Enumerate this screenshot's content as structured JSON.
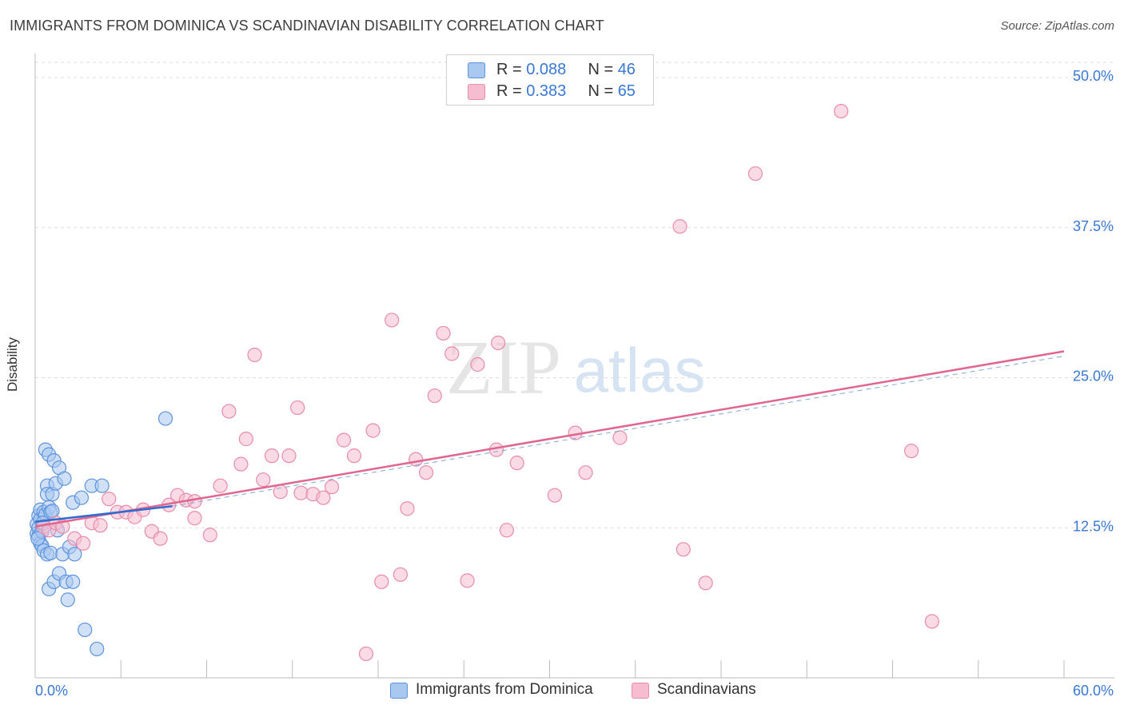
{
  "title": "IMMIGRANTS FROM DOMINICA VS SCANDINAVIAN DISABILITY CORRELATION CHART",
  "source": "Source: ZipAtlas.com",
  "watermark": {
    "zip": "ZIP",
    "atlas": "atlas"
  },
  "legend": {
    "rows": [
      {
        "r_label": "R = ",
        "r_value": "0.088",
        "n_label": "N = ",
        "n_value": "46"
      },
      {
        "r_label": "R = ",
        "r_value": "0.383",
        "n_label": "N = ",
        "n_value": "65"
      }
    ]
  },
  "bottom_legend": [
    "Immigrants from Dominica",
    "Scandinavians"
  ],
  "colors": {
    "blue_fill": "#a9c8f0",
    "blue_stroke": "#5d93dd",
    "blue_line": "#2f6ccf",
    "pink_fill": "#f6bdd0",
    "pink_stroke": "#e98bab",
    "pink_line": "#e0668f",
    "tick_label": "#3a78d6",
    "grid": "#dddddd"
  },
  "chart_data": {
    "type": "scatter",
    "ylabel": "Disability",
    "xlim": [
      0,
      60
    ],
    "ylim": [
      0,
      52
    ],
    "x_tick_labels": [
      "0.0%",
      "60.0%"
    ],
    "y_ticks": [
      12.5,
      25.0,
      37.5,
      50.0
    ],
    "y_tick_labels": [
      "12.5%",
      "25.0%",
      "37.5%",
      "50.0%"
    ],
    "series": [
      {
        "name": "Immigrants from Dominica",
        "color": "blue",
        "points": [
          [
            0.1,
            12.8
          ],
          [
            0.1,
            12.0
          ],
          [
            0.2,
            13.5
          ],
          [
            0.2,
            12.5
          ],
          [
            0.2,
            11.8
          ],
          [
            0.3,
            14.0
          ],
          [
            0.3,
            13.2
          ],
          [
            0.3,
            11.2
          ],
          [
            0.4,
            12.2
          ],
          [
            0.4,
            11.0
          ],
          [
            0.5,
            13.8
          ],
          [
            0.5,
            10.6
          ],
          [
            0.6,
            19.0
          ],
          [
            0.6,
            13.6
          ],
          [
            0.7,
            16.0
          ],
          [
            0.7,
            15.3
          ],
          [
            0.7,
            10.3
          ],
          [
            0.8,
            18.6
          ],
          [
            0.8,
            14.2
          ],
          [
            0.8,
            7.4
          ],
          [
            0.9,
            13.8
          ],
          [
            0.9,
            10.4
          ],
          [
            1.0,
            15.3
          ],
          [
            1.0,
            13.9
          ],
          [
            1.1,
            18.1
          ],
          [
            1.1,
            8.0
          ],
          [
            1.2,
            16.2
          ],
          [
            1.3,
            12.3
          ],
          [
            1.4,
            17.5
          ],
          [
            1.4,
            8.7
          ],
          [
            1.6,
            10.3
          ],
          [
            1.7,
            16.6
          ],
          [
            1.8,
            8.0
          ],
          [
            1.9,
            6.5
          ],
          [
            2.0,
            10.9
          ],
          [
            2.2,
            8.0
          ],
          [
            2.2,
            14.6
          ],
          [
            2.3,
            10.3
          ],
          [
            2.7,
            15.0
          ],
          [
            2.9,
            4.0
          ],
          [
            3.3,
            16.0
          ],
          [
            3.6,
            2.4
          ],
          [
            3.9,
            16.0
          ],
          [
            7.6,
            21.6
          ],
          [
            0.15,
            11.6
          ],
          [
            0.45,
            12.9
          ]
        ],
        "trend": {
          "x1": 0,
          "y1": 13.0,
          "x2": 8.0,
          "y2": 14.3
        },
        "trend_ext": {
          "x1": 8.0,
          "y1": 14.3,
          "x2": 60,
          "y2": 26.8
        }
      },
      {
        "name": "Scandinavians",
        "color": "pink",
        "points": [
          [
            0.5,
            12.6
          ],
          [
            0.8,
            12.3
          ],
          [
            1.2,
            12.9
          ],
          [
            1.6,
            12.6
          ],
          [
            2.3,
            11.6
          ],
          [
            2.8,
            11.2
          ],
          [
            3.3,
            12.9
          ],
          [
            3.8,
            12.7
          ],
          [
            4.3,
            14.9
          ],
          [
            4.8,
            13.8
          ],
          [
            5.3,
            13.8
          ],
          [
            5.8,
            13.4
          ],
          [
            6.3,
            14.0
          ],
          [
            6.8,
            12.2
          ],
          [
            7.3,
            11.6
          ],
          [
            7.8,
            14.4
          ],
          [
            8.3,
            15.2
          ],
          [
            8.8,
            14.8
          ],
          [
            9.3,
            14.7
          ],
          [
            9.3,
            13.3
          ],
          [
            10.2,
            11.9
          ],
          [
            10.8,
            16.0
          ],
          [
            11.3,
            22.2
          ],
          [
            12.0,
            17.8
          ],
          [
            12.3,
            19.9
          ],
          [
            12.8,
            26.9
          ],
          [
            13.3,
            16.5
          ],
          [
            13.8,
            18.5
          ],
          [
            14.3,
            15.5
          ],
          [
            14.8,
            18.5
          ],
          [
            15.3,
            22.5
          ],
          [
            15.5,
            15.4
          ],
          [
            16.2,
            15.3
          ],
          [
            16.8,
            15.0
          ],
          [
            17.3,
            15.9
          ],
          [
            18.0,
            19.8
          ],
          [
            18.6,
            18.5
          ],
          [
            19.3,
            2.0
          ],
          [
            19.7,
            20.6
          ],
          [
            20.2,
            8.0
          ],
          [
            20.8,
            29.8
          ],
          [
            21.3,
            8.6
          ],
          [
            21.7,
            14.1
          ],
          [
            22.2,
            18.2
          ],
          [
            22.8,
            17.1
          ],
          [
            23.3,
            23.5
          ],
          [
            23.8,
            28.7
          ],
          [
            24.3,
            27.0
          ],
          [
            25.2,
            8.1
          ],
          [
            25.8,
            26.1
          ],
          [
            26.9,
            19.0
          ],
          [
            27.0,
            27.9
          ],
          [
            27.5,
            12.3
          ],
          [
            28.1,
            17.9
          ],
          [
            30.3,
            15.2
          ],
          [
            31.5,
            20.4
          ],
          [
            32.1,
            17.1
          ],
          [
            34.1,
            20.0
          ],
          [
            37.6,
            37.6
          ],
          [
            37.8,
            10.7
          ],
          [
            39.1,
            7.9
          ],
          [
            42.0,
            42.0
          ],
          [
            47.0,
            47.2
          ],
          [
            51.1,
            18.9
          ],
          [
            52.3,
            4.7
          ]
        ],
        "trend": {
          "x1": 0,
          "y1": 12.6,
          "x2": 60,
          "y2": 27.2
        }
      }
    ]
  }
}
